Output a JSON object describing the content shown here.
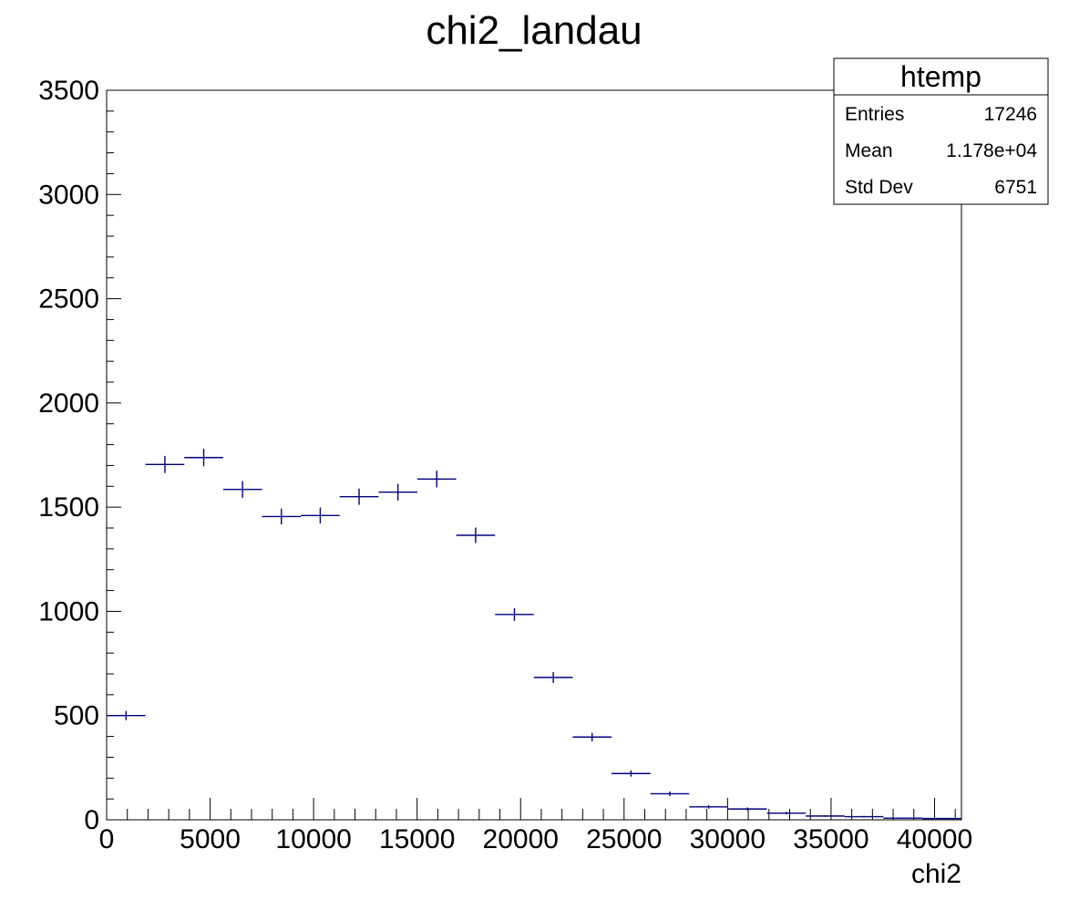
{
  "chart_data": {
    "type": "scatter",
    "title": "chi2_landau",
    "xlabel": "chi2",
    "ylabel": "",
    "xlim": [
      0,
      41300
    ],
    "ylim": [
      0,
      3500
    ],
    "x_ticks": [
      0,
      5000,
      10000,
      15000,
      20000,
      25000,
      30000,
      35000,
      40000
    ],
    "y_ticks": [
      0,
      500,
      1000,
      1500,
      2000,
      2500,
      3000,
      3500
    ],
    "bin_width": 1876,
    "series": [
      {
        "color": "#000080",
        "points": [
          {
            "x": 938,
            "y": 500,
            "err": 22
          },
          {
            "x": 2815,
            "y": 1705,
            "err": 41
          },
          {
            "x": 4691,
            "y": 1738,
            "err": 42
          },
          {
            "x": 6568,
            "y": 1585,
            "err": 40
          },
          {
            "x": 8444,
            "y": 1455,
            "err": 38
          },
          {
            "x": 10321,
            "y": 1460,
            "err": 38
          },
          {
            "x": 12197,
            "y": 1550,
            "err": 39
          },
          {
            "x": 14074,
            "y": 1572,
            "err": 40
          },
          {
            "x": 15950,
            "y": 1635,
            "err": 40
          },
          {
            "x": 17827,
            "y": 1365,
            "err": 37
          },
          {
            "x": 19703,
            "y": 985,
            "err": 31
          },
          {
            "x": 21580,
            "y": 683,
            "err": 26
          },
          {
            "x": 23456,
            "y": 397,
            "err": 20
          },
          {
            "x": 25333,
            "y": 222,
            "err": 15
          },
          {
            "x": 27209,
            "y": 125,
            "err": 11
          },
          {
            "x": 29086,
            "y": 62,
            "err": 8
          },
          {
            "x": 30962,
            "y": 52,
            "err": 7
          },
          {
            "x": 32839,
            "y": 32,
            "err": 6
          },
          {
            "x": 34715,
            "y": 18,
            "err": 4
          },
          {
            "x": 36592,
            "y": 15,
            "err": 4
          },
          {
            "x": 38468,
            "y": 8,
            "err": 3
          },
          {
            "x": 40345,
            "y": 6,
            "err": 2
          }
        ]
      }
    ],
    "grid": false,
    "legend": "none"
  },
  "stats_box": {
    "title": "htemp",
    "rows": [
      {
        "label": "Entries",
        "value": "17246"
      },
      {
        "label": "Mean",
        "value": "1.178e+04"
      },
      {
        "label": "Std Dev",
        "value": "6751"
      }
    ]
  }
}
